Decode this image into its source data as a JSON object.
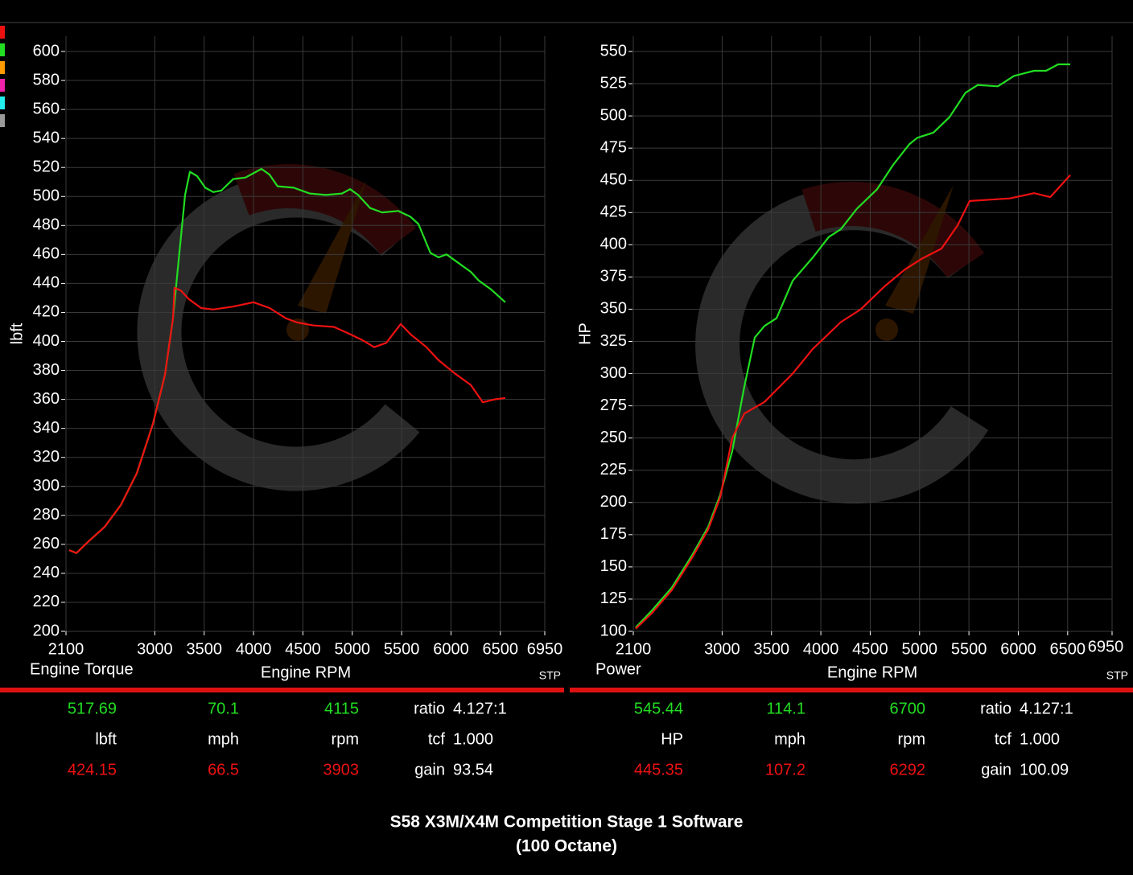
{
  "chart_data": [
    {
      "type": "line",
      "corner_label": "Engine Torque",
      "x_label": "Engine RPM",
      "y_label": "lbft",
      "note": "STP",
      "xlim": [
        2100,
        6950
      ],
      "xticks": [
        2100,
        3000,
        3500,
        4000,
        4500,
        5000,
        5500,
        6000,
        6500,
        6950
      ],
      "ylim": [
        200,
        600
      ],
      "yticks": [
        200,
        220,
        240,
        260,
        280,
        300,
        320,
        340,
        360,
        380,
        400,
        420,
        440,
        460,
        480,
        500,
        520,
        540,
        560,
        580,
        600
      ],
      "grid": true,
      "series": [
        {
          "color": "#22dd22",
          "x": [
            2133,
            2206,
            2328,
            2491,
            2654,
            2817,
            2980,
            3103,
            3184,
            3241,
            3306,
            3355,
            3429,
            3510,
            3592,
            3673,
            3795,
            3917,
            3999,
            4080,
            4162,
            4243,
            4406,
            4570,
            4733,
            4896,
            4977,
            5059,
            5181,
            5303,
            5466,
            5589,
            5670,
            5792,
            5874,
            5955,
            6078,
            6200,
            6281,
            6403,
            6550
          ],
          "values": [
            256,
            254,
            262,
            272,
            287,
            309,
            343,
            377,
            416,
            456,
            501,
            517,
            514,
            506,
            503,
            504,
            512,
            513,
            516,
            519,
            515,
            507,
            506,
            502,
            501,
            502,
            505,
            501,
            492,
            489,
            490,
            486,
            481,
            461,
            458,
            460,
            454,
            448,
            442,
            436,
            427
          ]
        },
        {
          "color": "#ee1111",
          "x": [
            2133,
            2206,
            2328,
            2491,
            2654,
            2817,
            2980,
            3103,
            3184,
            3200,
            3265,
            3347,
            3469,
            3592,
            3795,
            3999,
            4162,
            4325,
            4447,
            4610,
            4814,
            4977,
            5100,
            5222,
            5344,
            5491,
            5589,
            5752,
            5874,
            6037,
            6200,
            6322,
            6444,
            6550
          ],
          "values": [
            256,
            254,
            262,
            272,
            287,
            309,
            343,
            377,
            416,
            437,
            435,
            429,
            423,
            422,
            424,
            427,
            423,
            416,
            413,
            411,
            410,
            405,
            401,
            396,
            399,
            412,
            405,
            396,
            387,
            378,
            370,
            358,
            360,
            361
          ]
        }
      ],
      "readout": [
        [
          "517.69",
          "70.1",
          "4115",
          "ratio",
          "4.127:1"
        ],
        [
          "lbft",
          "mph",
          "rpm",
          "tcf",
          "1.000"
        ],
        [
          "424.15",
          "66.5",
          "3903",
          "gain",
          "93.54"
        ]
      ]
    },
    {
      "type": "line",
      "corner_label": "Power",
      "x_label": "Engine RPM",
      "y_label": "HP",
      "note": "STP",
      "xlim": [
        2100,
        6950
      ],
      "xticks": [
        2100,
        3000,
        3500,
        4000,
        4500,
        5000,
        5500,
        6000,
        6500,
        6950
      ],
      "ylim": [
        100,
        550
      ],
      "yticks": [
        100,
        125,
        150,
        175,
        200,
        225,
        250,
        275,
        300,
        325,
        350,
        375,
        400,
        425,
        450,
        475,
        500,
        525,
        550
      ],
      "grid": true,
      "series": [
        {
          "color": "#22dd22",
          "x": [
            2124,
            2287,
            2491,
            2695,
            2858,
            2980,
            3103,
            3225,
            3331,
            3429,
            3551,
            3714,
            3917,
            4080,
            4202,
            4365,
            4569,
            4732,
            4896,
            4977,
            5140,
            5303,
            5466,
            5589,
            5793,
            5956,
            6160,
            6282,
            6404,
            6526
          ],
          "values": [
            103,
            116,
            134,
            159,
            181,
            206,
            240,
            290,
            328,
            337,
            343,
            372,
            390,
            406,
            412,
            428,
            443,
            462,
            478,
            483,
            487,
            499,
            518,
            524,
            523,
            531,
            535,
            535,
            540,
            540
          ]
        },
        {
          "color": "#ee1111",
          "x": [
            2124,
            2287,
            2491,
            2695,
            2858,
            2980,
            3103,
            3225,
            3429,
            3714,
            3917,
            4202,
            4406,
            4650,
            4854,
            5018,
            5222,
            5385,
            5507,
            5711,
            5915,
            6160,
            6323,
            6526
          ],
          "values": [
            102,
            114,
            132,
            157,
            179,
            204,
            250,
            269,
            278,
            300,
            319,
            340,
            350,
            368,
            381,
            389,
            397,
            415,
            434,
            435,
            436,
            440,
            437,
            454
          ]
        }
      ],
      "readout": [
        [
          "545.44",
          "114.1",
          "6700",
          "ratio",
          "4.127:1"
        ],
        [
          "HP",
          "mph",
          "rpm",
          "tcf",
          "1.000"
        ],
        [
          "445.35",
          "107.2",
          "6292",
          "gain",
          "100.09"
        ]
      ]
    }
  ],
  "footer": {
    "line1": "S58 X3M/X4M Competition Stage 1 Software",
    "line2": "(100 Octane)"
  }
}
